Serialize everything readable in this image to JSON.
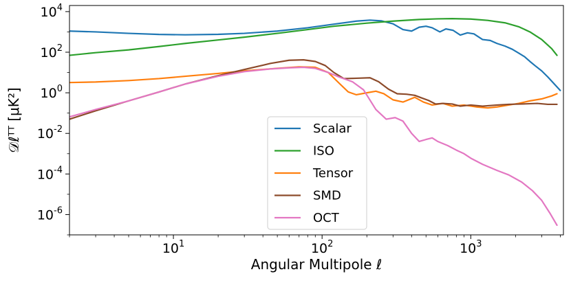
{
  "chart_data": {
    "type": "line",
    "xlabel": "Angular Multipole ℓ",
    "ylabel": "𝒟ℓᵀᵀ [μK²]",
    "x_scale": "log",
    "y_scale": "log",
    "xlim": [
      2,
      4200
    ],
    "ylim": [
      1e-07,
      20000
    ],
    "x_ticks": [
      {
        "value": 10,
        "base": "10",
        "exp": "1"
      },
      {
        "value": 100,
        "base": "10",
        "exp": "2"
      },
      {
        "value": 1000,
        "base": "10",
        "exp": "3"
      }
    ],
    "y_ticks": [
      {
        "value": 1e-06,
        "base": "10",
        "exp": "-6"
      },
      {
        "value": 0.0001,
        "base": "10",
        "exp": "-4"
      },
      {
        "value": 0.01,
        "base": "10",
        "exp": "-2"
      },
      {
        "value": 1,
        "base": "10",
        "exp": "0"
      },
      {
        "value": 100,
        "base": "10",
        "exp": "2"
      },
      {
        "value": 10000,
        "base": "10",
        "exp": "4"
      }
    ],
    "grid": false,
    "legend_position": "lower-center",
    "series": [
      {
        "name": "Scalar",
        "color": "#1f77b4",
        "points": [
          [
            2,
            1100
          ],
          [
            3,
            1000
          ],
          [
            5,
            850
          ],
          [
            8,
            750
          ],
          [
            12,
            720
          ],
          [
            20,
            760
          ],
          [
            30,
            850
          ],
          [
            50,
            1100
          ],
          [
            80,
            1600
          ],
          [
            120,
            2400
          ],
          [
            170,
            3400
          ],
          [
            210,
            3800
          ],
          [
            250,
            3500
          ],
          [
            300,
            2500
          ],
          [
            350,
            1300
          ],
          [
            400,
            1100
          ],
          [
            450,
            1700
          ],
          [
            500,
            1900
          ],
          [
            550,
            1600
          ],
          [
            620,
            1000
          ],
          [
            680,
            1400
          ],
          [
            760,
            1200
          ],
          [
            850,
            700
          ],
          [
            950,
            900
          ],
          [
            1050,
            800
          ],
          [
            1200,
            420
          ],
          [
            1350,
            380
          ],
          [
            1500,
            270
          ],
          [
            1700,
            200
          ],
          [
            1900,
            140
          ],
          [
            2100,
            90
          ],
          [
            2300,
            60
          ],
          [
            2500,
            35
          ],
          [
            2700,
            22
          ],
          [
            3000,
            12
          ],
          [
            3300,
            6
          ],
          [
            3600,
            3
          ],
          [
            4000,
            1.3
          ]
        ]
      },
      {
        "name": "ISO",
        "color": "#2ca02c",
        "points": [
          [
            2,
            70
          ],
          [
            3,
            95
          ],
          [
            5,
            130
          ],
          [
            8,
            190
          ],
          [
            12,
            270
          ],
          [
            20,
            400
          ],
          [
            30,
            550
          ],
          [
            50,
            850
          ],
          [
            80,
            1300
          ],
          [
            120,
            1900
          ],
          [
            200,
            2700
          ],
          [
            300,
            3400
          ],
          [
            450,
            4100
          ],
          [
            600,
            4400
          ],
          [
            750,
            4500
          ],
          [
            1000,
            4300
          ],
          [
            1300,
            3700
          ],
          [
            1700,
            2800
          ],
          [
            2100,
            1800
          ],
          [
            2500,
            1000
          ],
          [
            3000,
            420
          ],
          [
            3500,
            150
          ],
          [
            3800,
            70
          ]
        ]
      },
      {
        "name": "Tensor",
        "color": "#ff7f0e",
        "points": [
          [
            2,
            3.2
          ],
          [
            3,
            3.4
          ],
          [
            5,
            4.0
          ],
          [
            8,
            5.0
          ],
          [
            12,
            6.5
          ],
          [
            20,
            9
          ],
          [
            30,
            12
          ],
          [
            50,
            16
          ],
          [
            70,
            19
          ],
          [
            90,
            18
          ],
          [
            110,
            10
          ],
          [
            130,
            3
          ],
          [
            150,
            1.1
          ],
          [
            170,
            0.8
          ],
          [
            200,
            1.0
          ],
          [
            230,
            1.2
          ],
          [
            260,
            0.9
          ],
          [
            300,
            0.45
          ],
          [
            350,
            0.35
          ],
          [
            420,
            0.6
          ],
          [
            480,
            0.35
          ],
          [
            550,
            0.25
          ],
          [
            650,
            0.3
          ],
          [
            750,
            0.22
          ],
          [
            900,
            0.25
          ],
          [
            1100,
            0.2
          ],
          [
            1300,
            0.18
          ],
          [
            1500,
            0.2
          ],
          [
            1800,
            0.25
          ],
          [
            2100,
            0.3
          ],
          [
            2500,
            0.4
          ],
          [
            3000,
            0.5
          ],
          [
            3500,
            0.7
          ],
          [
            3800,
            0.9
          ]
        ]
      },
      {
        "name": "SMD",
        "color": "#8c4a2a",
        "points": [
          [
            2,
            0.05
          ],
          [
            3,
            0.13
          ],
          [
            5,
            0.4
          ],
          [
            8,
            1.1
          ],
          [
            12,
            2.7
          ],
          [
            20,
            7
          ],
          [
            30,
            14
          ],
          [
            45,
            28
          ],
          [
            60,
            40
          ],
          [
            75,
            42
          ],
          [
            90,
            35
          ],
          [
            105,
            22
          ],
          [
            120,
            10
          ],
          [
            140,
            5
          ],
          [
            170,
            5.2
          ],
          [
            210,
            5.5
          ],
          [
            240,
            3.5
          ],
          [
            280,
            1.5
          ],
          [
            320,
            0.9
          ],
          [
            370,
            0.85
          ],
          [
            420,
            0.75
          ],
          [
            470,
            0.55
          ],
          [
            520,
            0.42
          ],
          [
            580,
            0.28
          ],
          [
            650,
            0.3
          ],
          [
            750,
            0.28
          ],
          [
            850,
            0.22
          ],
          [
            1000,
            0.25
          ],
          [
            1200,
            0.22
          ],
          [
            1500,
            0.25
          ],
          [
            1800,
            0.27
          ],
          [
            2200,
            0.28
          ],
          [
            2800,
            0.3
          ],
          [
            3300,
            0.27
          ],
          [
            3800,
            0.27
          ]
        ]
      },
      {
        "name": "OCT",
        "color": "#e377c2",
        "points": [
          [
            2,
            0.065
          ],
          [
            3,
            0.15
          ],
          [
            5,
            0.4
          ],
          [
            8,
            1.1
          ],
          [
            12,
            2.7
          ],
          [
            20,
            6.5
          ],
          [
            30,
            11
          ],
          [
            45,
            15
          ],
          [
            60,
            17
          ],
          [
            75,
            18
          ],
          [
            90,
            16
          ],
          [
            110,
            10
          ],
          [
            130,
            6
          ],
          [
            160,
            3.5
          ],
          [
            190,
            1.4
          ],
          [
            230,
            0.15
          ],
          [
            270,
            0.05
          ],
          [
            310,
            0.06
          ],
          [
            350,
            0.04
          ],
          [
            400,
            0.01
          ],
          [
            450,
            0.004
          ],
          [
            500,
            0.005
          ],
          [
            550,
            0.006
          ],
          [
            600,
            0.004
          ],
          [
            700,
            0.0025
          ],
          [
            800,
            0.0015
          ],
          [
            900,
            0.001
          ],
          [
            1000,
            0.0006
          ],
          [
            1200,
            0.0003
          ],
          [
            1500,
            0.00015
          ],
          [
            1800,
            9e-05
          ],
          [
            2200,
            4e-05
          ],
          [
            2600,
            1.5e-05
          ],
          [
            3000,
            5e-06
          ],
          [
            3400,
            1.2e-06
          ],
          [
            3800,
            3e-07
          ]
        ]
      }
    ]
  }
}
